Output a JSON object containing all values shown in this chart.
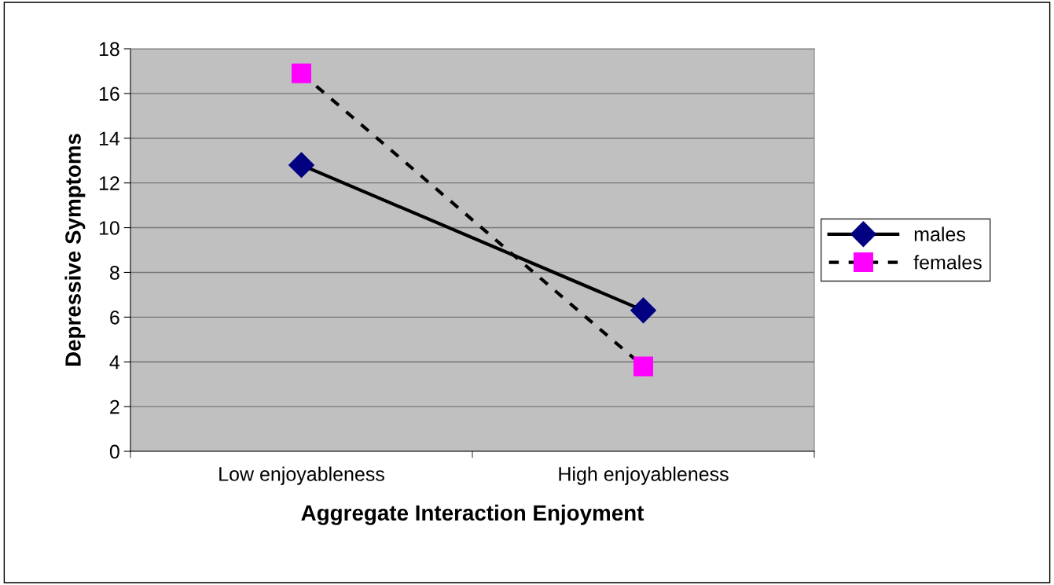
{
  "chart_data": {
    "type": "line",
    "xlabel": "Aggregate Interaction Enjoyment",
    "ylabel": "Depressive Symptoms",
    "categories": [
      "Low enjoyableness",
      "High enjoyableness"
    ],
    "series": [
      {
        "name": "males",
        "color": "#000080",
        "values": [
          12.8,
          6.3
        ],
        "marker": "diamond",
        "line_style": "solid"
      },
      {
        "name": "females",
        "color": "#ff00ff",
        "values": [
          16.9,
          3.8
        ],
        "marker": "square",
        "line_style": "dashed"
      }
    ],
    "ylim": [
      0,
      18
    ],
    "yticks": [
      0,
      2,
      4,
      6,
      8,
      10,
      12,
      14,
      16,
      18
    ],
    "grid": "y",
    "legend": "right"
  }
}
